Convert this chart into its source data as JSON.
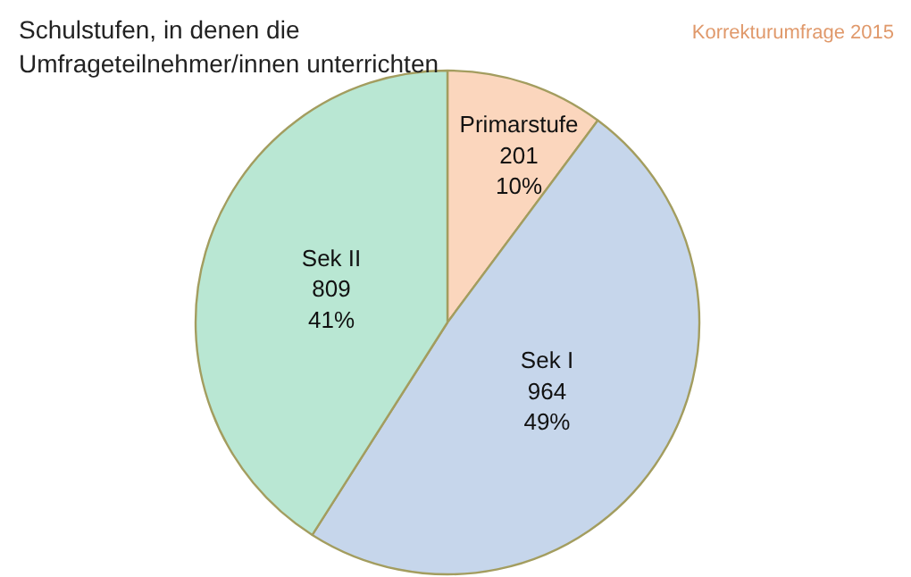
{
  "chart_data": {
    "type": "pie",
    "title": "Schulstufen, in denen die\nUmfrageteilnehmer/innen unterrichten",
    "categories": [
      "Primarstufe",
      "Sek I",
      "Sek II"
    ],
    "values": [
      201,
      964,
      809
    ],
    "colors": [
      "#fbd6bd",
      "#c6d6eb",
      "#b9e7d3"
    ],
    "value_labels": [
      "201\n10%",
      "964\n49%",
      "809\n41%"
    ],
    "annotations": [
      "Korrekturumfrage 2015"
    ]
  }
}
